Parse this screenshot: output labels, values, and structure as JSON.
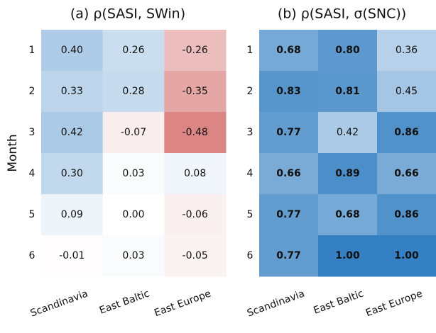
{
  "chart_data": [
    {
      "type": "heatmap",
      "title": "(a) ρ(SASI, SWin)",
      "y_label": "Month",
      "x_categories": [
        "Scandinavia",
        "East Baltic",
        "East Europe"
      ],
      "y_categories": [
        "1",
        "2",
        "3",
        "4",
        "5",
        "6"
      ],
      "values": [
        [
          0.4,
          0.26,
          -0.26
        ],
        [
          0.33,
          0.28,
          -0.35
        ],
        [
          0.42,
          -0.07,
          -0.48
        ],
        [
          0.3,
          0.03,
          0.08
        ],
        [
          0.09,
          0.0,
          -0.06
        ],
        [
          -0.01,
          0.03,
          -0.05
        ]
      ],
      "value_labels": [
        [
          "0.40",
          "0.26",
          "-0.26"
        ],
        [
          "0.33",
          "0.28",
          "-0.35"
        ],
        [
          "0.42",
          "-0.07",
          "-0.48"
        ],
        [
          "0.30",
          "0.03",
          "0.08"
        ],
        [
          "0.09",
          "0.00",
          "-0.06"
        ],
        [
          "-0.01",
          "0.03",
          "-0.05"
        ]
      ],
      "zlim": [
        -1,
        1
      ],
      "colors": [
        "#b40000",
        "#ffffff",
        "#3580c2"
      ]
    },
    {
      "type": "heatmap",
      "title": "(b) ρ(SASI, σ(SNC))",
      "x_categories": [
        "Scandinavia",
        "East Baltic",
        "East Europe"
      ],
      "y_categories": [
        "1",
        "2",
        "3",
        "4",
        "5",
        "6"
      ],
      "values": [
        [
          0.68,
          0.8,
          0.36
        ],
        [
          0.83,
          0.81,
          0.45
        ],
        [
          0.77,
          0.42,
          0.86
        ],
        [
          0.66,
          0.89,
          0.66
        ],
        [
          0.77,
          0.68,
          0.86
        ],
        [
          0.77,
          1.0,
          1.0
        ]
      ],
      "value_labels": [
        [
          "0.68",
          "0.80",
          "0.36"
        ],
        [
          "0.83",
          "0.81",
          "0.45"
        ],
        [
          "0.77",
          "0.42",
          "0.86"
        ],
        [
          "0.66",
          "0.89",
          "0.66"
        ],
        [
          "0.77",
          "0.68",
          "0.86"
        ],
        [
          "0.77",
          "1.00",
          "1.00"
        ]
      ],
      "bold": [
        [
          true,
          true,
          false
        ],
        [
          true,
          true,
          false
        ],
        [
          true,
          false,
          true
        ],
        [
          true,
          true,
          true
        ],
        [
          true,
          true,
          true
        ],
        [
          true,
          true,
          true
        ]
      ],
      "zlim": [
        -1,
        1
      ],
      "colors": [
        "#b40000",
        "#ffffff",
        "#3580c2"
      ]
    }
  ]
}
